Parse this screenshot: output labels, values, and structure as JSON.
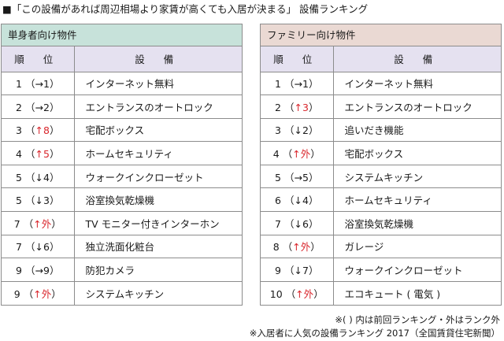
{
  "title": "■「この設備があれば周辺相場より家賃が高くても入居が決まる」 設備ランキング",
  "headers": {
    "rank": "順 位",
    "item": "設 備"
  },
  "left": {
    "title": "単身者向け物件",
    "rows": [
      {
        "rank": "1",
        "change": "→1",
        "up": false,
        "item": "インターネット無料"
      },
      {
        "rank": "2",
        "change": "→2",
        "up": false,
        "item": "エントランスのオートロック"
      },
      {
        "rank": "3",
        "change": "↑8",
        "up": true,
        "item": "宅配ボックス"
      },
      {
        "rank": "4",
        "change": "↑5",
        "up": true,
        "item": "ホームセキュリティ"
      },
      {
        "rank": "5",
        "change": "↓4",
        "up": false,
        "item": "ウォークインクローゼット"
      },
      {
        "rank": "5",
        "change": "↓3",
        "up": false,
        "item": "浴室換気乾燥機"
      },
      {
        "rank": "7",
        "change": "↑外",
        "up": true,
        "item": "TV モニター付きインターホン"
      },
      {
        "rank": "7",
        "change": "↓6",
        "up": false,
        "item": "独立洗面化粧台"
      },
      {
        "rank": "9",
        "change": "→9",
        "up": false,
        "item": "防犯カメラ"
      },
      {
        "rank": "9",
        "change": "↑外",
        "up": true,
        "item": "システムキッチン"
      }
    ]
  },
  "right": {
    "title": "ファミリー向け物件",
    "rows": [
      {
        "rank": "1",
        "change": "→1",
        "up": false,
        "item": "インターネット無料"
      },
      {
        "rank": "2",
        "change": "↑3",
        "up": true,
        "item": "エントランスのオートロック"
      },
      {
        "rank": "3",
        "change": "↓2",
        "up": false,
        "item": "追いだき機能"
      },
      {
        "rank": "4",
        "change": "↑外",
        "up": true,
        "item": "宅配ボックス"
      },
      {
        "rank": "5",
        "change": "→5",
        "up": false,
        "item": "システムキッチン"
      },
      {
        "rank": "6",
        "change": "↓4",
        "up": false,
        "item": "ホームセキュリティ"
      },
      {
        "rank": "7",
        "change": "↓6",
        "up": false,
        "item": "浴室換気乾燥機"
      },
      {
        "rank": "8",
        "change": "↑外",
        "up": true,
        "item": "ガレージ"
      },
      {
        "rank": "9",
        "change": "↓7",
        "up": false,
        "item": "ウォークインクローゼット"
      },
      {
        "rank": "10",
        "change": "↑外",
        "up": true,
        "item": "エコキュート ( 電気 )"
      }
    ]
  },
  "footnotes": [
    "※( ) 内は前回ランキング・外はランク外",
    "※入居者に人気の設備ランキング 2017（全国賃貸住宅新聞）"
  ],
  "colors": {
    "up": "#d9262c",
    "left_header": "#c7e2da",
    "right_header": "#ead9d3",
    "column_header": "#e5e1f0"
  }
}
